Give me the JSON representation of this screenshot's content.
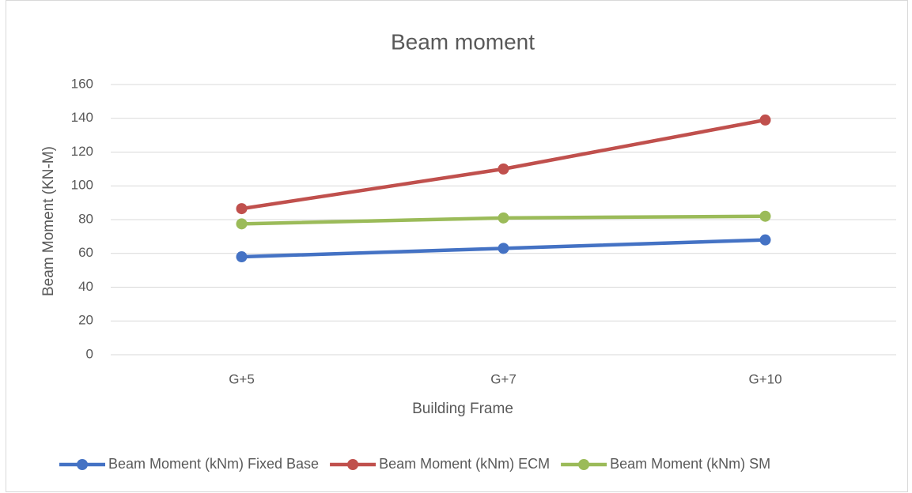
{
  "chart_data": {
    "type": "line",
    "title": "Beam moment",
    "x_label": "Building Frame",
    "y_label": "Beam Moment (KN-M)",
    "categories": [
      "G+5",
      "G+7",
      "G+10"
    ],
    "series": [
      {
        "name": "Beam Moment (kNm) Fixed Base",
        "color": "#4472c4",
        "values": [
          58,
          63,
          68
        ]
      },
      {
        "name": "Beam Moment (kNm) ECM",
        "color": "#c0504d",
        "values": [
          86.5,
          110,
          139
        ]
      },
      {
        "name": "Beam Moment (kNm) SM",
        "color": "#9bbb59",
        "values": [
          77.5,
          81,
          82
        ]
      }
    ],
    "ylim": [
      0,
      160
    ],
    "yticks": [
      0,
      20,
      40,
      60,
      80,
      100,
      120,
      140,
      160
    ],
    "grid": true,
    "legend": "bottom"
  }
}
